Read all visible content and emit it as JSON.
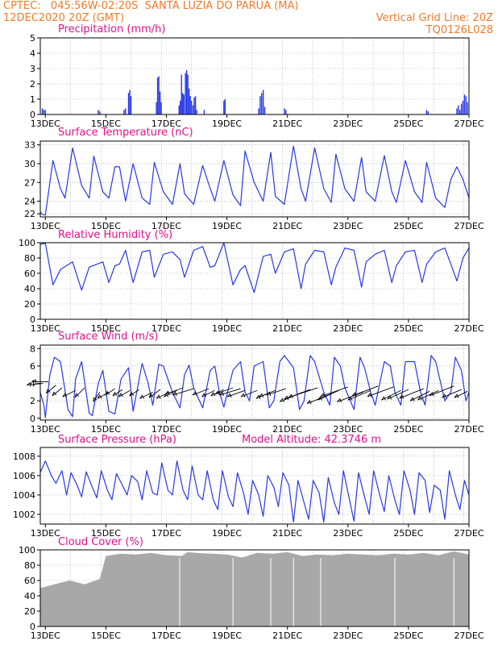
{
  "header": {
    "left_line1": "CPTEC:   045:56W-02:20S  SANTA LUZIA DO PARUA (MA)",
    "left_line2": "12DEC2020 20Z (GMT)",
    "right_line1": "Vertical Grid Line: 20Z",
    "right_line2": "TQ0126L028"
  },
  "colors": {
    "header": "#f07a28",
    "title": "#e0108c",
    "line": "#2838e8",
    "cloud": "#a8a8a8",
    "grid": "#9a9a9a"
  },
  "chart_data": [
    {
      "type": "bar",
      "title": "Precipitation (mm/h)",
      "ylim": [
        0,
        5
      ],
      "yticks": [
        0,
        1,
        2,
        3,
        4,
        5
      ],
      "xlim": [
        12.833,
        27.0
      ],
      "xticks": [
        "13DEC",
        "15DEC",
        "17DEC",
        "19DEC",
        "21DEC",
        "23DEC",
        "25DEC",
        "27DEC"
      ],
      "x": [
        12.9,
        12.95,
        13.0,
        14.75,
        14.8,
        15.6,
        15.65,
        15.75,
        15.79,
        15.83,
        16.67,
        16.71,
        16.75,
        16.79,
        16.83,
        17.42,
        17.46,
        17.5,
        17.54,
        17.58,
        17.63,
        17.67,
        17.71,
        17.75,
        17.79,
        17.83,
        17.88,
        17.92,
        17.96,
        18.0,
        18.25,
        18.9,
        18.94,
        20.05,
        20.1,
        20.15,
        20.2,
        20.25,
        20.9,
        20.95,
        25.6,
        25.65,
        26.6,
        26.65,
        26.7,
        26.75,
        26.8,
        26.85,
        26.9,
        26.95
      ],
      "values": [
        0.4,
        0.3,
        0.3,
        0.3,
        0.2,
        0.3,
        0.4,
        1.4,
        1.6,
        1.2,
        0.8,
        2.4,
        2.5,
        1.5,
        0.8,
        0.6,
        0.9,
        2.6,
        1.4,
        1.3,
        2.7,
        2.9,
        2.6,
        1.7,
        1.2,
        0.9,
        0.6,
        1.1,
        1.2,
        0.3,
        0.3,
        0.9,
        1.0,
        0.4,
        1.2,
        1.4,
        1.6,
        0.5,
        0.4,
        0.3,
        0.3,
        0.2,
        0.4,
        0.6,
        0.3,
        0.7,
        0.9,
        1.3,
        1.2,
        0.8
      ]
    },
    {
      "type": "line",
      "title": "Surface Temperature (nC)",
      "ylim": [
        21.5,
        33.6
      ],
      "yticks": [
        22,
        24,
        27,
        30,
        33
      ],
      "xlim": [
        12.833,
        27.0
      ],
      "xticks": [
        "13DEC",
        "15DEC",
        "17DEC",
        "19DEC",
        "21DEC",
        "23DEC",
        "25DEC",
        "27DEC"
      ],
      "x": [
        12.83,
        12.9,
        13.0,
        13.25,
        13.5,
        13.65,
        13.9,
        14.2,
        14.45,
        14.6,
        14.9,
        15.1,
        15.3,
        15.45,
        15.65,
        15.9,
        16.2,
        16.45,
        16.6,
        16.9,
        17.2,
        17.45,
        17.6,
        17.9,
        18.2,
        18.45,
        18.6,
        18.9,
        19.2,
        19.45,
        19.6,
        19.9,
        20.2,
        20.45,
        20.6,
        20.9,
        21.2,
        21.45,
        21.6,
        21.9,
        22.2,
        22.45,
        22.6,
        22.9,
        23.2,
        23.45,
        23.6,
        23.9,
        24.2,
        24.45,
        24.6,
        24.9,
        25.2,
        25.45,
        25.6,
        25.9,
        26.2,
        26.4,
        26.6,
        26.8,
        27.0
      ],
      "values": [
        22.3,
        21.9,
        21.8,
        30.5,
        26.0,
        24.5,
        32.5,
        26.5,
        24.5,
        31.2,
        25.5,
        24.5,
        29.5,
        29.5,
        24.0,
        30.0,
        24.5,
        23.5,
        30.2,
        25.5,
        23.5,
        30.0,
        25.2,
        23.5,
        29.7,
        26.0,
        24.0,
        30.5,
        25.0,
        23.3,
        32.0,
        27.0,
        24.0,
        31.8,
        24.8,
        23.5,
        32.8,
        26.0,
        24.0,
        32.5,
        26.0,
        23.8,
        31.5,
        26.0,
        24.0,
        31.0,
        25.5,
        24.0,
        31.3,
        25.5,
        23.8,
        30.5,
        25.5,
        23.8,
        30.2,
        24.5,
        23.0,
        27.5,
        29.5,
        27.5,
        24.5
      ]
    },
    {
      "type": "line",
      "title": "Relative Humidity (%)",
      "ylim": [
        0,
        100
      ],
      "yticks": [
        0,
        20,
        40,
        60,
        80,
        100
      ],
      "xlim": [
        12.833,
        27.0
      ],
      "xticks": [
        "13DEC",
        "15DEC",
        "17DEC",
        "19DEC",
        "21DEC",
        "23DEC",
        "25DEC",
        "27DEC"
      ],
      "x": [
        12.83,
        13.0,
        13.25,
        13.5,
        13.9,
        14.2,
        14.45,
        14.9,
        15.1,
        15.3,
        15.45,
        15.65,
        15.9,
        16.2,
        16.45,
        16.6,
        16.9,
        17.2,
        17.45,
        17.6,
        17.9,
        18.2,
        18.45,
        18.6,
        18.9,
        19.2,
        19.45,
        19.6,
        19.9,
        20.2,
        20.45,
        20.6,
        20.9,
        21.2,
        21.45,
        21.6,
        21.9,
        22.2,
        22.45,
        22.6,
        22.9,
        23.2,
        23.45,
        23.6,
        23.9,
        24.2,
        24.45,
        24.6,
        24.9,
        25.2,
        25.45,
        25.6,
        25.9,
        26.2,
        26.4,
        26.6,
        26.8,
        27.0
      ],
      "values": [
        98,
        99,
        45,
        65,
        75,
        38,
        68,
        75,
        48,
        70,
        72,
        90,
        48,
        88,
        90,
        55,
        85,
        88,
        78,
        55,
        90,
        95,
        68,
        70,
        100,
        45,
        65,
        70,
        35,
        82,
        85,
        60,
        88,
        92,
        40,
        72,
        90,
        88,
        45,
        68,
        93,
        90,
        42,
        75,
        85,
        90,
        48,
        70,
        88,
        90,
        48,
        72,
        88,
        93,
        72,
        50,
        80,
        93
      ]
    },
    {
      "type": "line",
      "title": "Surface Wind (m/s)",
      "ylim": [
        -0.2,
        8.4
      ],
      "yticks": [
        0,
        2,
        4,
        6,
        8
      ],
      "xlim": [
        12.833,
        27.0
      ],
      "xticks": [
        "13DEC",
        "15DEC",
        "17DEC",
        "19DEC",
        "21DEC",
        "23DEC",
        "25DEC",
        "27DEC"
      ],
      "x": [
        12.83,
        12.95,
        13.0,
        13.15,
        13.3,
        13.5,
        13.75,
        13.9,
        14.0,
        14.2,
        14.45,
        14.55,
        14.75,
        14.9,
        15.1,
        15.3,
        15.5,
        15.75,
        15.9,
        16.2,
        16.4,
        16.55,
        16.75,
        16.9,
        17.2,
        17.45,
        17.6,
        17.75,
        17.9,
        18.2,
        18.45,
        18.6,
        18.75,
        18.9,
        19.2,
        19.45,
        19.6,
        19.75,
        19.9,
        20.2,
        20.4,
        20.55,
        20.75,
        20.9,
        21.2,
        21.4,
        21.55,
        21.75,
        21.9,
        22.2,
        22.4,
        22.55,
        22.75,
        22.9,
        23.2,
        23.4,
        23.55,
        23.75,
        23.9,
        24.2,
        24.4,
        24.55,
        24.75,
        24.9,
        25.2,
        25.4,
        25.55,
        25.75,
        25.9,
        26.2,
        26.4,
        26.55,
        26.75,
        26.9,
        27.0
      ],
      "values": [
        3.0,
        1.5,
        0.1,
        5.0,
        7.0,
        6.5,
        1.0,
        0.2,
        4.5,
        6.5,
        0.6,
        0.3,
        4.0,
        5.5,
        0.8,
        0.5,
        4.5,
        5.8,
        0.8,
        6.3,
        4.0,
        1.5,
        6.2,
        6.0,
        3.0,
        1.2,
        5.0,
        6.1,
        3.5,
        1.2,
        5.5,
        6.0,
        3.0,
        1.3,
        5.5,
        6.5,
        3.0,
        2.0,
        6.0,
        6.5,
        1.2,
        2.0,
        6.5,
        7.2,
        5.8,
        1.0,
        2.0,
        7.2,
        6.5,
        3.0,
        1.5,
        7.0,
        6.0,
        3.5,
        1.0,
        7.0,
        5.8,
        3.0,
        1.5,
        6.5,
        6.0,
        3.0,
        1.5,
        6.5,
        6.5,
        3.0,
        1.5,
        7.2,
        6.5,
        2.0,
        3.0,
        7.0,
        5.5,
        2.0,
        3.0
      ],
      "arrows": {
        "x": [
          12.92,
          13.1,
          13.35,
          13.55,
          14.0,
          14.3,
          14.8,
          15.1,
          15.3,
          15.55,
          15.8,
          16.1,
          16.55,
          16.8,
          17.1,
          17.35,
          17.55,
          17.9,
          18.4,
          18.6,
          18.9,
          19.2,
          19.45,
          19.6,
          20.0,
          20.45,
          20.6,
          20.95,
          21.5,
          21.75,
          22.0,
          22.45,
          22.7,
          23.0,
          23.5,
          23.75,
          24.0,
          24.5,
          24.75,
          25.0,
          25.5,
          25.7,
          26.0,
          26.5,
          26.75,
          26.95
        ],
        "y": [
          4.0,
          4.2,
          3.8,
          3.5,
          3.2,
          3.5,
          3.0,
          3.0,
          3.4,
          3.3,
          3.2,
          3.3,
          3.0,
          3.3,
          3.0,
          3.2,
          3.5,
          3.4,
          3.4,
          3.2,
          3.3,
          3.5,
          3.4,
          3.2,
          3.2,
          3.0,
          3.2,
          3.4,
          3.0,
          3.3,
          3.5,
          2.8,
          3.2,
          3.6,
          3.0,
          3.2,
          3.7,
          3.6,
          3.2,
          3.3,
          3.4,
          3.1,
          3.2,
          3.7,
          3.3,
          3.1
        ],
        "u": [
          -1.0,
          -1.0,
          -0.6,
          -0.6,
          -0.8,
          -0.6,
          -0.4,
          -0.7,
          -0.6,
          -0.6,
          -0.7,
          -0.6,
          -0.8,
          -0.7,
          -0.8,
          -0.8,
          -1.1,
          -1.3,
          -1.0,
          -0.8,
          -0.8,
          -1.1,
          -1.3,
          -1.1,
          -1.0,
          -0.9,
          -1.0,
          -1.2,
          -1.4,
          -1.6,
          -1.8,
          -1.5,
          -1.3,
          -1.7,
          -1.6,
          -1.4,
          -1.6,
          -1.6,
          -1.2,
          -1.3,
          -1.5,
          -1.2,
          -1.3,
          -1.5,
          -1.2,
          -0.8
        ],
        "v": [
          -0.1,
          0.0,
          -0.5,
          -0.5,
          -0.4,
          -0.6,
          -0.6,
          -0.4,
          -0.4,
          -0.4,
          -0.4,
          -0.4,
          -0.4,
          -0.5,
          -0.4,
          -0.4,
          -0.4,
          -0.4,
          -0.4,
          -0.4,
          -0.4,
          -0.4,
          -0.4,
          -0.4,
          -0.4,
          -0.4,
          -0.4,
          -0.4,
          -0.6,
          -0.6,
          -0.6,
          -0.6,
          -0.6,
          -0.6,
          -0.6,
          -0.6,
          -0.6,
          -0.6,
          -0.6,
          -0.6,
          -0.6,
          -0.6,
          -0.6,
          -0.6,
          -0.5,
          -0.4
        ]
      }
    },
    {
      "type": "line",
      "title": "Surface Pressure (hPa)",
      "annotation": "Model Altitude: 42.3746 m",
      "ylim": [
        1001.0,
        1008.9
      ],
      "yticks": [
        1002,
        1004,
        1006,
        1008
      ],
      "xlim": [
        12.833,
        27.0
      ],
      "xticks": [
        "13DEC",
        "15DEC",
        "17DEC",
        "19DEC",
        "21DEC",
        "23DEC",
        "25DEC",
        "27DEC"
      ],
      "x": [
        12.83,
        13.0,
        13.2,
        13.35,
        13.55,
        13.7,
        13.85,
        14.05,
        14.2,
        14.35,
        14.55,
        14.7,
        14.85,
        15.05,
        15.2,
        15.35,
        15.55,
        15.7,
        15.85,
        16.05,
        16.2,
        16.35,
        16.55,
        16.7,
        16.85,
        17.05,
        17.2,
        17.35,
        17.55,
        17.7,
        17.85,
        18.05,
        18.2,
        18.35,
        18.55,
        18.7,
        18.85,
        19.05,
        19.2,
        19.35,
        19.55,
        19.7,
        19.85,
        20.05,
        20.2,
        20.35,
        20.55,
        20.7,
        20.85,
        21.05,
        21.2,
        21.35,
        21.55,
        21.7,
        21.85,
        22.05,
        22.2,
        22.35,
        22.55,
        22.7,
        22.85,
        23.05,
        23.2,
        23.35,
        23.55,
        23.7,
        23.85,
        24.05,
        24.2,
        24.35,
        24.55,
        24.7,
        24.85,
        25.05,
        25.2,
        25.35,
        25.55,
        25.7,
        25.85,
        26.05,
        26.2,
        26.35,
        26.55,
        26.7,
        26.85,
        27.0
      ],
      "values": [
        1006.3,
        1007.5,
        1006.0,
        1005.2,
        1006.5,
        1004.0,
        1006.3,
        1005.0,
        1003.8,
        1006.4,
        1004.8,
        1003.7,
        1006.5,
        1004.5,
        1003.5,
        1006.2,
        1005.0,
        1004.0,
        1006.0,
        1005.4,
        1003.5,
        1006.5,
        1004.2,
        1004.0,
        1007.3,
        1004.5,
        1004.0,
        1007.5,
        1004.5,
        1003.5,
        1007.0,
        1004.0,
        1003.5,
        1006.5,
        1003.5,
        1002.5,
        1006.5,
        1003.8,
        1002.8,
        1006.3,
        1004.2,
        1002.0,
        1005.5,
        1004.0,
        1001.8,
        1006.0,
        1004.8,
        1002.8,
        1006.3,
        1005.0,
        1001.2,
        1005.5,
        1003.2,
        1001.5,
        1005.5,
        1004.2,
        1001.2,
        1005.8,
        1003.2,
        1002.0,
        1006.5,
        1003.5,
        1001.3,
        1006.3,
        1003.8,
        1002.0,
        1006.5,
        1004.0,
        1002.3,
        1006.0,
        1003.5,
        1002.0,
        1006.5,
        1004.5,
        1002.0,
        1006.3,
        1005.5,
        1002.2,
        1005.0,
        1004.5,
        1001.5,
        1006.5,
        1004.0,
        1002.5,
        1005.5,
        1004.0
      ]
    },
    {
      "type": "bar",
      "title": "Cloud Cover (%)",
      "ylim": [
        0,
        100
      ],
      "yticks": [
        0,
        20,
        40,
        60,
        80,
        100
      ],
      "xlim": [
        12.833,
        27.0
      ],
      "xticks": [
        "13DEC",
        "15DEC",
        "17DEC",
        "19DEC",
        "21DEC",
        "23DEC",
        "25DEC",
        "27DEC"
      ],
      "x": [
        12.83,
        13.3,
        13.8,
        14.3,
        14.8,
        15.0,
        15.5,
        16.0,
        16.5,
        17.0,
        17.5,
        17.7,
        18.0,
        18.5,
        19.0,
        19.5,
        20.0,
        20.5,
        21.0,
        21.5,
        22.0,
        22.5,
        23.0,
        23.5,
        24.0,
        24.5,
        25.0,
        25.5,
        26.0,
        26.5,
        27.0
      ],
      "values": [
        50,
        55,
        60,
        55,
        62,
        92,
        95,
        94,
        96,
        93,
        92,
        97,
        96,
        95,
        94,
        90,
        96,
        95,
        97,
        92,
        94,
        93,
        95,
        94,
        93,
        95,
        94,
        96,
        93,
        98,
        94
      ]
    }
  ]
}
